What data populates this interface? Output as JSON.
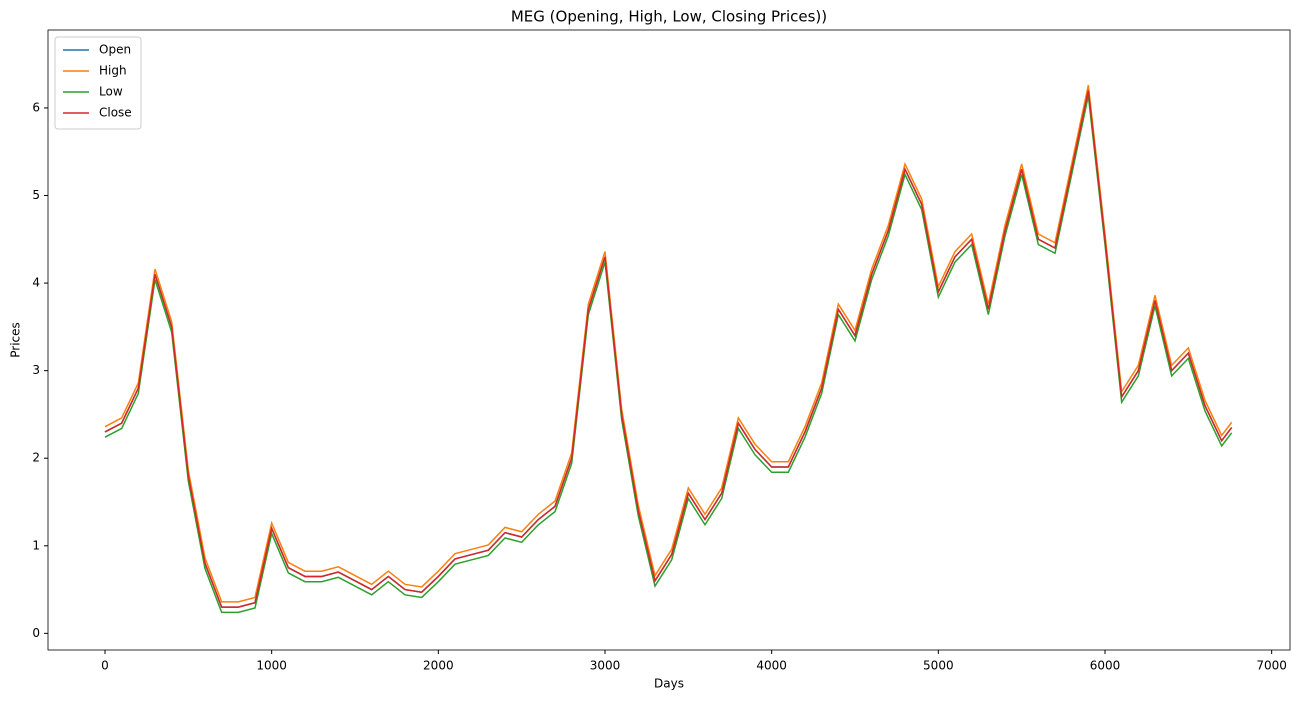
{
  "chart_data": {
    "type": "line",
    "title": "MEG (Opening, High, Low, Closing Prices))",
    "x_label": "Days",
    "y_label": "Prices",
    "x": [
      0,
      100,
      200,
      300,
      400,
      500,
      600,
      700,
      800,
      900,
      1000,
      1100,
      1200,
      1300,
      1400,
      1500,
      1600,
      1700,
      1800,
      1900,
      2000,
      2100,
      2200,
      2300,
      2400,
      2500,
      2600,
      2700,
      2800,
      2900,
      3000,
      3100,
      3200,
      3300,
      3400,
      3500,
      3600,
      3700,
      3800,
      3900,
      4000,
      4100,
      4200,
      4300,
      4400,
      4500,
      4600,
      4700,
      4800,
      4900,
      5000,
      5100,
      5200,
      5300,
      5400,
      5500,
      5600,
      5700,
      5800,
      5900,
      6000,
      6100,
      6200,
      6300,
      6400,
      6500,
      6600,
      6700,
      6760
    ],
    "series": [
      {
        "name": "Open",
        "color": "#1f77b4",
        "values": [
          2.3,
          2.4,
          2.8,
          4.1,
          3.5,
          1.8,
          0.8,
          0.3,
          0.3,
          0.35,
          1.2,
          0.75,
          0.65,
          0.65,
          0.7,
          0.6,
          0.5,
          0.65,
          0.5,
          0.47,
          0.65,
          0.85,
          0.9,
          0.95,
          1.15,
          1.1,
          1.3,
          1.45,
          2.0,
          3.7,
          4.3,
          2.5,
          1.4,
          0.6,
          0.9,
          1.6,
          1.3,
          1.6,
          2.4,
          2.1,
          1.9,
          1.9,
          2.3,
          2.8,
          3.7,
          3.4,
          4.1,
          4.6,
          5.3,
          4.9,
          3.9,
          4.3,
          4.5,
          3.7,
          4.6,
          5.3,
          4.5,
          4.4,
          5.3,
          6.2,
          4.5,
          2.7,
          3.0,
          3.8,
          3.0,
          3.2,
          2.6,
          2.2,
          2.35
        ]
      },
      {
        "name": "High",
        "color": "#ff7f0e",
        "values": [
          2.36,
          2.46,
          2.86,
          4.16,
          3.56,
          1.86,
          0.86,
          0.36,
          0.36,
          0.41,
          1.26,
          0.81,
          0.71,
          0.71,
          0.76,
          0.66,
          0.56,
          0.71,
          0.56,
          0.53,
          0.71,
          0.91,
          0.96,
          1.01,
          1.21,
          1.16,
          1.36,
          1.51,
          2.06,
          3.76,
          4.36,
          2.56,
          1.46,
          0.66,
          0.96,
          1.66,
          1.36,
          1.66,
          2.46,
          2.16,
          1.96,
          1.96,
          2.36,
          2.86,
          3.76,
          3.46,
          4.16,
          4.66,
          5.36,
          4.96,
          3.96,
          4.36,
          4.56,
          3.76,
          4.66,
          5.36,
          4.56,
          4.46,
          5.36,
          6.26,
          4.56,
          2.76,
          3.06,
          3.86,
          3.06,
          3.26,
          2.66,
          2.26,
          2.41
        ]
      },
      {
        "name": "Low",
        "color": "#2ca02c",
        "values": [
          2.24,
          2.34,
          2.74,
          4.04,
          3.44,
          1.74,
          0.74,
          0.24,
          0.24,
          0.29,
          1.14,
          0.69,
          0.59,
          0.59,
          0.64,
          0.54,
          0.44,
          0.59,
          0.44,
          0.41,
          0.59,
          0.79,
          0.84,
          0.89,
          1.09,
          1.04,
          1.24,
          1.39,
          1.94,
          3.64,
          4.24,
          2.44,
          1.34,
          0.54,
          0.84,
          1.54,
          1.24,
          1.54,
          2.34,
          2.04,
          1.84,
          1.84,
          2.24,
          2.74,
          3.64,
          3.34,
          4.04,
          4.54,
          5.24,
          4.84,
          3.84,
          4.24,
          4.44,
          3.64,
          4.54,
          5.24,
          4.44,
          4.34,
          5.24,
          6.14,
          4.44,
          2.64,
          2.94,
          3.74,
          2.94,
          3.14,
          2.54,
          2.14,
          2.29
        ]
      },
      {
        "name": "Close",
        "color": "#d62728",
        "values": [
          2.3,
          2.4,
          2.8,
          4.1,
          3.5,
          1.8,
          0.8,
          0.3,
          0.3,
          0.35,
          1.2,
          0.75,
          0.65,
          0.65,
          0.7,
          0.6,
          0.5,
          0.65,
          0.5,
          0.47,
          0.65,
          0.85,
          0.9,
          0.95,
          1.15,
          1.1,
          1.3,
          1.45,
          2.0,
          3.7,
          4.3,
          2.5,
          1.4,
          0.6,
          0.9,
          1.6,
          1.3,
          1.6,
          2.4,
          2.1,
          1.9,
          1.9,
          2.3,
          2.8,
          3.7,
          3.4,
          4.1,
          4.6,
          5.3,
          4.9,
          3.9,
          4.3,
          4.5,
          3.7,
          4.6,
          5.3,
          4.5,
          4.4,
          5.3,
          6.2,
          4.5,
          2.7,
          3.0,
          3.8,
          3.0,
          3.2,
          2.6,
          2.2,
          2.35
        ]
      }
    ],
    "xlim": [
      -342,
      7110
    ],
    "ylim": [
      -0.19,
      6.89
    ],
    "xticks": [
      0,
      1000,
      2000,
      3000,
      4000,
      5000,
      6000,
      7000
    ],
    "yticks": [
      0,
      1,
      2,
      3,
      4,
      5,
      6
    ],
    "legend": "upper left"
  }
}
